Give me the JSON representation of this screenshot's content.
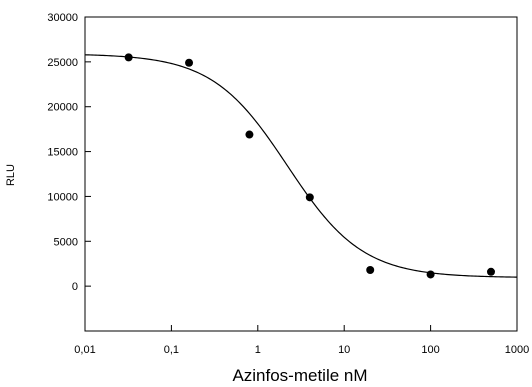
{
  "chart_data": {
    "type": "scatter",
    "title": "",
    "xlabel": "Azinfos-metile nM",
    "ylabel": "RLU",
    "x_scale": "log",
    "xlim": [
      0.01,
      1000
    ],
    "ylim": [
      -5000,
      30000
    ],
    "x_ticks": [
      0.01,
      0.1,
      1,
      10,
      100,
      1000
    ],
    "x_tick_labels": [
      "0,01",
      "0,1",
      "1",
      "10",
      "100",
      "1000"
    ],
    "y_ticks": [
      0,
      5000,
      10000,
      15000,
      20000,
      25000,
      30000
    ],
    "y_tick_labels": [
      "0",
      "5000",
      "10000",
      "15000",
      "20000",
      "25000",
      "30000"
    ],
    "grid": false,
    "legend": "none",
    "marker_color": "#000000",
    "series": [
      {
        "values": [
          {
            "x": 0.032,
            "y": 25500
          },
          {
            "x": 0.16,
            "y": 24900
          },
          {
            "x": 0.8,
            "y": 16900
          },
          {
            "x": 4,
            "y": 9900
          },
          {
            "x": 20,
            "y": 1800
          },
          {
            "x": 100,
            "y": 1300
          },
          {
            "x": 500,
            "y": 1600
          }
        ]
      }
    ],
    "fit_curve": {
      "model": "4-parameter logistic",
      "top": 25900,
      "bottom": 950,
      "ec50": 2.2,
      "hill": 1.0
    }
  }
}
